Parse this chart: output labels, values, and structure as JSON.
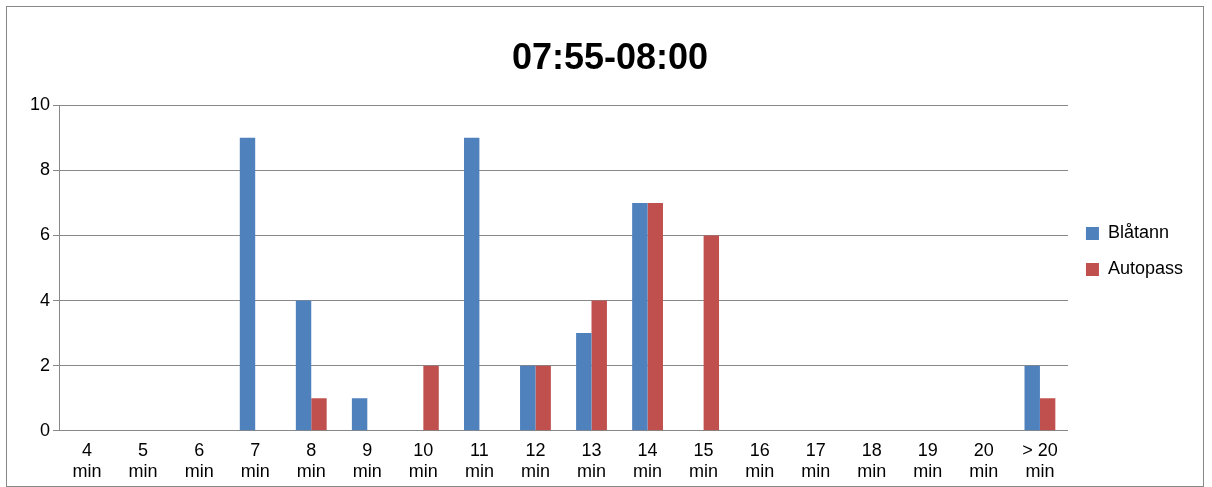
{
  "chart_data": {
    "type": "bar",
    "title": "07:55-08:00",
    "categories": [
      "4 min",
      "5 min",
      "6 min",
      "7 min",
      "8 min",
      "9 min",
      "10 min",
      "11 min",
      "12 min",
      "13 min",
      "14 min",
      "15 min",
      "16 min",
      "17 min",
      "18 min",
      "19 min",
      "20 min",
      "> 20 min"
    ],
    "series": [
      {
        "name": "Blåtann",
        "color": "#4f81bd",
        "values": [
          0,
          0,
          0,
          9,
          4,
          1,
          0,
          9,
          2,
          3,
          7,
          0,
          0,
          0,
          0,
          0,
          0,
          2
        ]
      },
      {
        "name": "Autopass",
        "color": "#c0504d",
        "values": [
          0,
          0,
          0,
          0,
          1,
          0,
          2,
          0,
          2,
          4,
          7,
          6,
          0,
          0,
          0,
          0,
          0,
          1
        ]
      }
    ],
    "ylim": [
      0,
      10
    ],
    "yticks": [
      0,
      2,
      4,
      6,
      8,
      10
    ],
    "grid": "y",
    "legend": "right"
  }
}
